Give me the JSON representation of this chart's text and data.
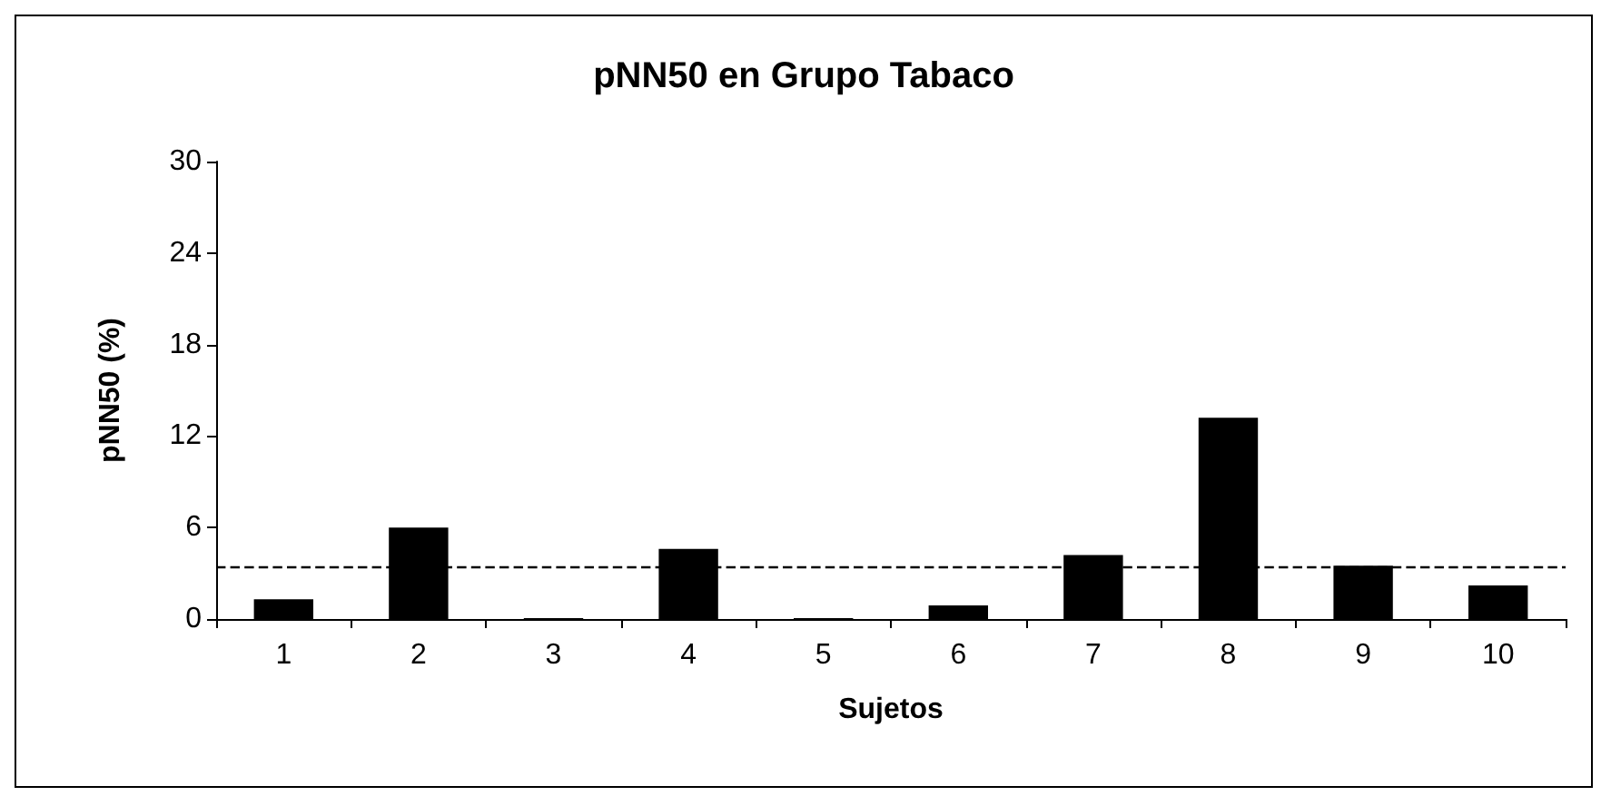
{
  "chart_data": {
    "type": "bar",
    "title": "pNN50 en Grupo Tabaco",
    "xlabel": "Sujetos",
    "ylabel": "pNN50 (%)",
    "categories": [
      "1",
      "2",
      "3",
      "4",
      "5",
      "6",
      "7",
      "8",
      "9",
      "10"
    ],
    "values": [
      1.3,
      6.0,
      0,
      4.6,
      0,
      0.9,
      4.2,
      13.2,
      3.5,
      2.2
    ],
    "color": "#000000",
    "ylim": [
      0,
      30
    ],
    "yticks": [
      0,
      6,
      12,
      18,
      24,
      30
    ],
    "grid": false,
    "ref_lines": [
      {
        "axis": "y",
        "value": 3.4,
        "line_style": "dashed",
        "color": "#000000"
      }
    ]
  }
}
